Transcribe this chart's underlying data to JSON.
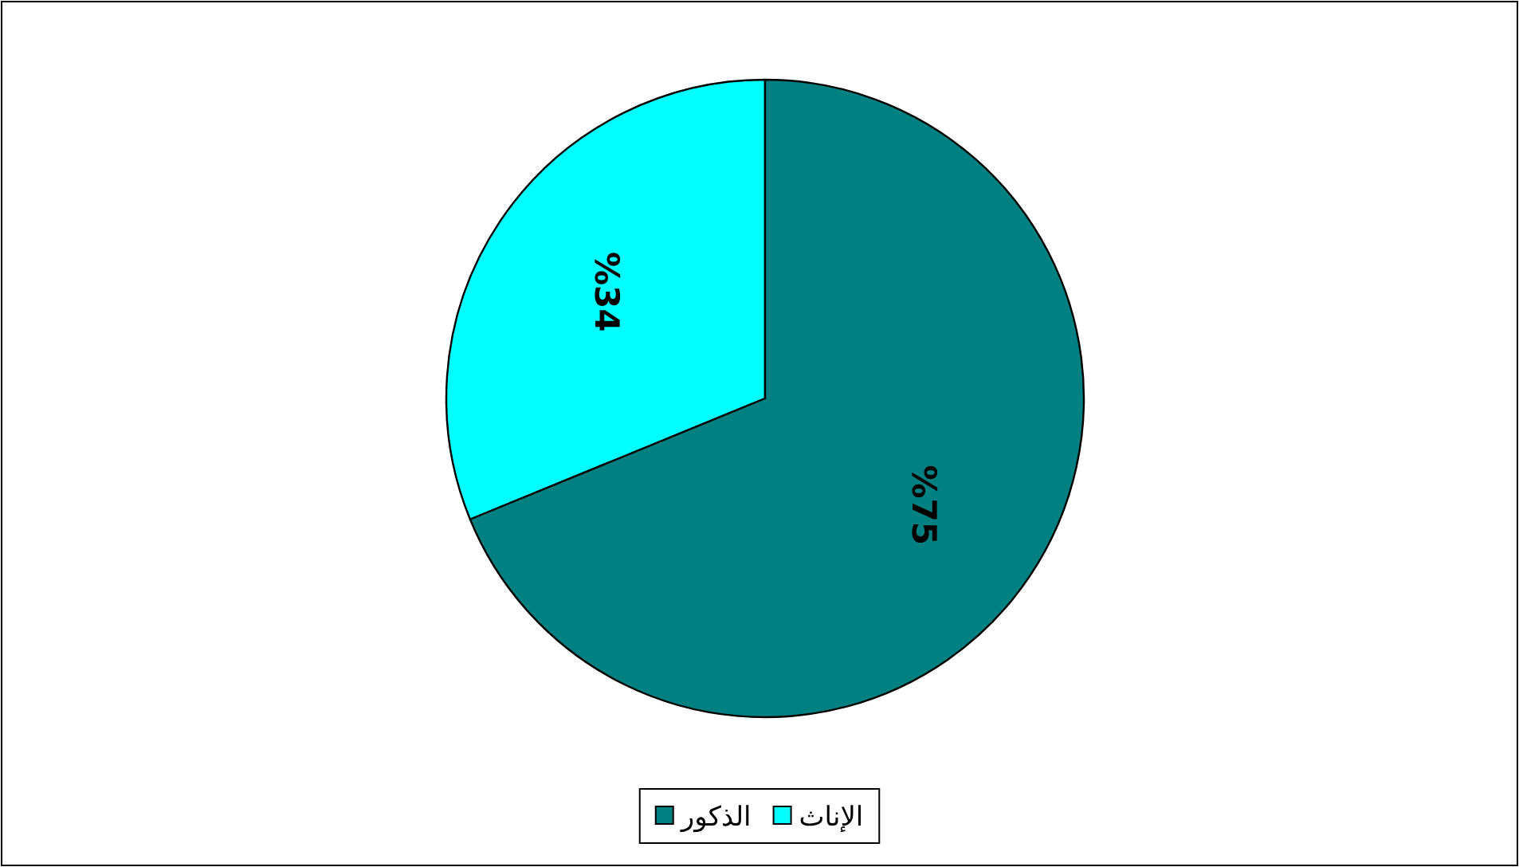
{
  "chart_data": {
    "type": "pie",
    "categories": [
      "الإناث",
      "الذكور"
    ],
    "values": [
      34,
      75
    ],
    "colors": [
      "#00ffff",
      "#008080"
    ],
    "value_labels": [
      "%34",
      "%75"
    ],
    "legend": "bottom"
  }
}
